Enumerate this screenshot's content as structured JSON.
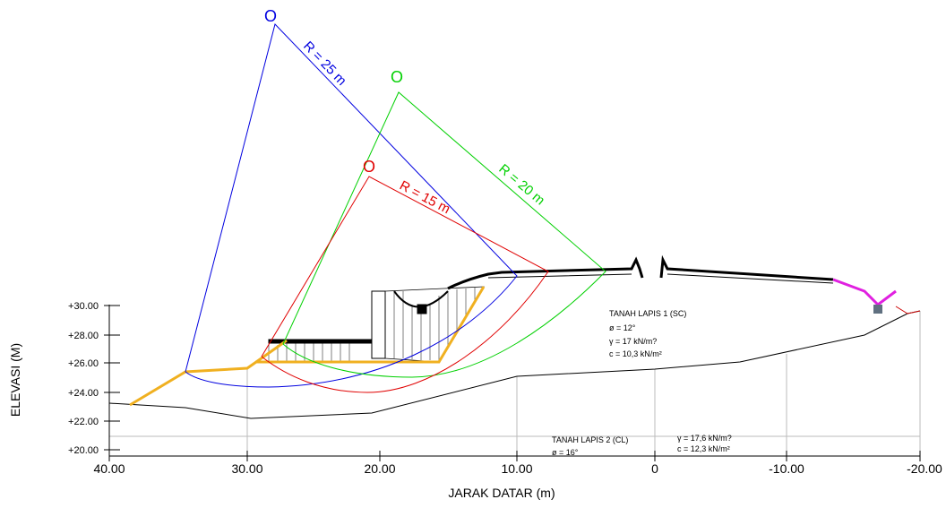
{
  "circles": [
    {
      "center": "O",
      "radius": "R = 25 m"
    },
    {
      "center": "O",
      "radius": "R = 20 m"
    },
    {
      "center": "O",
      "radius": "R = 15 m"
    }
  ],
  "layers": [
    {
      "title": "TANAH LAPIS 1 (SC)",
      "phi": "ø   = 12°",
      "gamma": "γ   = 17 kN/m?",
      "c": "c   = 10,3 kN/m²"
    },
    {
      "title": "TANAH LAPIS 2 (CL)",
      "phi": "ø   = 16°",
      "gamma": "γ   = 17,6 kN/m?",
      "c": "c   = 12,3 kN/m²"
    }
  ],
  "axes": {
    "y_label": "ELEVASI (M)",
    "x_label": "JARAK DATAR (m)",
    "y_ticks": [
      "+30.00",
      "+28.00",
      "+26.00",
      "+24.00",
      "+22.00",
      "+20.00"
    ],
    "x_ticks": [
      "40.00",
      "30.00",
      "20.00",
      "10.00",
      "0",
      "-10.00",
      "-20.00"
    ]
  }
}
